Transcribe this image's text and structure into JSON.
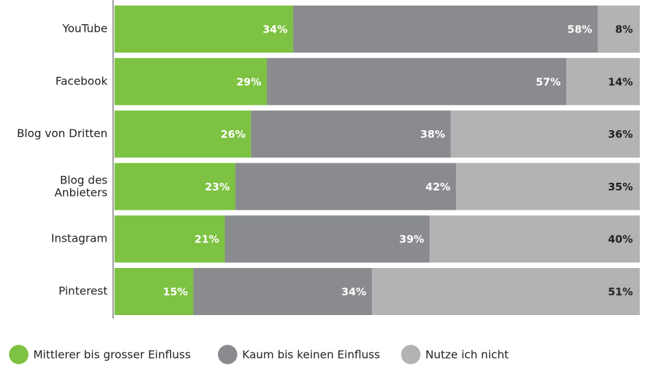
{
  "chart_data": {
    "type": "stacked-bar-horizontal",
    "categories": [
      "YouTube",
      "Facebook",
      "Blog von Dritten",
      "Blog des Anbieters",
      "Instagram",
      "Pinterest"
    ],
    "series": [
      {
        "name": "Mittlerer bis grosser Einfluss",
        "color": "#7dc242",
        "values": [
          34,
          29,
          26,
          23,
          21,
          15
        ],
        "value_labels": [
          "34%",
          "29%",
          "26%",
          "23%",
          "21%",
          "15%"
        ]
      },
      {
        "name": "Kaum bis keinen Einfluss",
        "color": "#898b8e",
        "values": [
          58,
          57,
          38,
          42,
          39,
          34
        ],
        "value_labels": [
          "58%",
          "57%",
          "38%",
          "42%",
          "39%",
          "34%"
        ]
      },
      {
        "name": "Nutze ich nicht",
        "color": "#b1b3b4",
        "values": [
          8,
          14,
          36,
          35,
          40,
          51
        ],
        "value_labels": [
          "8%",
          "14%",
          "36%",
          "35%",
          "40%",
          "51%"
        ]
      }
    ],
    "xlim": [
      0,
      100
    ],
    "legend": "bottom"
  }
}
